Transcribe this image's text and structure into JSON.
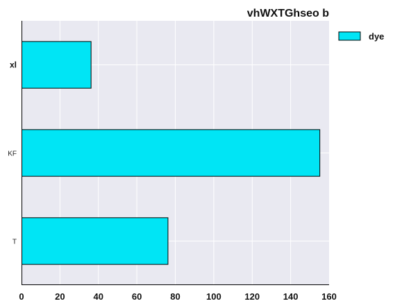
{
  "chart_data": {
    "type": "bar",
    "orientation": "horizontal",
    "title": "vhWXTGhseo b",
    "xlabel": "",
    "ylabel": "",
    "categories": [
      "xl",
      "KF",
      "T"
    ],
    "series": [
      {
        "name": "dye",
        "values": [
          36,
          155,
          76
        ],
        "color": "#00e5f5"
      }
    ],
    "xlim": [
      0,
      160
    ],
    "xticks": [
      0,
      20,
      40,
      60,
      80,
      100,
      120,
      140,
      160
    ],
    "grid": true,
    "legend_position": "top-right outside",
    "background": "#e9e9f1"
  }
}
